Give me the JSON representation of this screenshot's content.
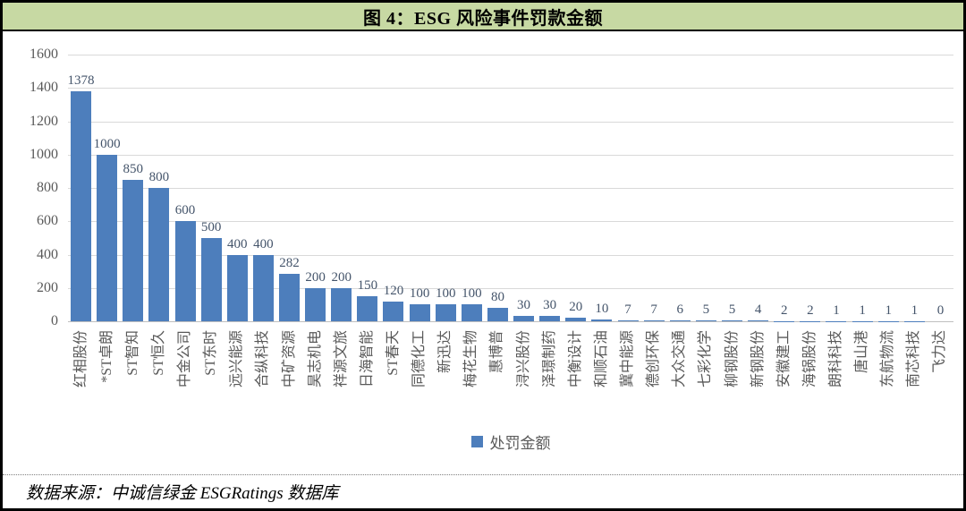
{
  "figure": {
    "title": "图 4：ESG 风险事件罚款金额",
    "source_note": "数据来源：中诚信绿金 ESGRatings 数据库"
  },
  "colors": {
    "header_bg": "#C7D9A3",
    "bar": "#4D7EBC",
    "value_label": "#44546A",
    "axis_label": "#595959",
    "gridline": "#D9D9D9",
    "axis_line": "#BFBFBF",
    "border": "#000000"
  },
  "chart_data": {
    "type": "bar",
    "title": "图 4：ESG 风险事件罚款金额",
    "xlabel": "",
    "ylabel": "",
    "ylim": [
      0,
      1600
    ],
    "yticks": [
      0,
      200,
      400,
      600,
      800,
      1000,
      1200,
      1400,
      1600
    ],
    "grid": true,
    "legend_position": "bottom",
    "series_name": "处罚金额",
    "categories": [
      "红相股份",
      "*ST卓朗",
      "ST智知",
      "ST恒久",
      "中金公司",
      "ST东时",
      "远兴能源",
      "合纵科技",
      "中矿资源",
      "昊志机电",
      "祥源文旅",
      "日海智能",
      "ST春天",
      "同德化工",
      "新迅达",
      "梅花生物",
      "惠博普",
      "浔兴股份",
      "泽璟制药",
      "中衡设计",
      "和顺石油",
      "冀中能源",
      "德创环保",
      "大众交通",
      "七彩化学",
      "柳钢股份",
      "新钢股份",
      "安徽建工",
      "海锅股份",
      "朗科科技",
      "唐山港",
      "东航物流",
      "南芯科技",
      "飞力达"
    ],
    "values": [
      1378,
      1000,
      850,
      800,
      600,
      500,
      400,
      400,
      282,
      200,
      200,
      150,
      120,
      100,
      100,
      100,
      80,
      30,
      30,
      20,
      10,
      7,
      7,
      6,
      5,
      5,
      4,
      2,
      2,
      1,
      1,
      1,
      1,
      0
    ]
  }
}
